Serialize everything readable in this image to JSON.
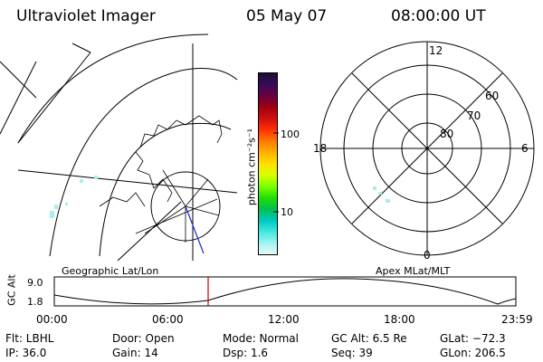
{
  "header": {
    "instrument": "Ultraviolet Imager",
    "date": "05 May 07",
    "time": "08:00:00 UT"
  },
  "geo_panel": {
    "caption": "Geographic Lat/Lon"
  },
  "colorbar": {
    "unit_label": "photon cm⁻²s⁻¹",
    "ticks": [
      "100",
      "10"
    ],
    "scale": "log",
    "colors": [
      "#1a1030",
      "#3a0a5a",
      "#6a0040",
      "#a00010",
      "#d01010",
      "#ff3000",
      "#ff7a00",
      "#ffb000",
      "#ffe000",
      "#d8ff00",
      "#7cff00",
      "#20e000",
      "#00c050",
      "#00c8c0",
      "#40e8e0",
      "#a0f4f0",
      "#e8f8f8"
    ]
  },
  "polar_panel": {
    "caption": "Apex MLat/MLT",
    "mlt_labels": {
      "top": "12",
      "left": "18",
      "right": "6",
      "bottom": "0"
    },
    "lat_labels": [
      "60",
      "70",
      "80"
    ]
  },
  "altitude_plot": {
    "ylabel": "GC Alt",
    "yticks": [
      "9.0",
      "1.8"
    ],
    "xticks": [
      "00:00",
      "06:00",
      "12:00",
      "18:00",
      "23:59"
    ],
    "marker_time": "08:00",
    "marker_color": "#d00000"
  },
  "info": {
    "flt": "Flt: LBHL",
    "ip": "IP: 36.0",
    "door": "Door: Open",
    "gain": "Gain: 14",
    "mode": "Mode: Normal",
    "dsp": "Dsp:    1.6",
    "gcalt": "GC Alt: 6.5 Re",
    "seq": "Seq: 39",
    "glat": "GLat: −72.3",
    "glon": "GLon: 206.5"
  }
}
